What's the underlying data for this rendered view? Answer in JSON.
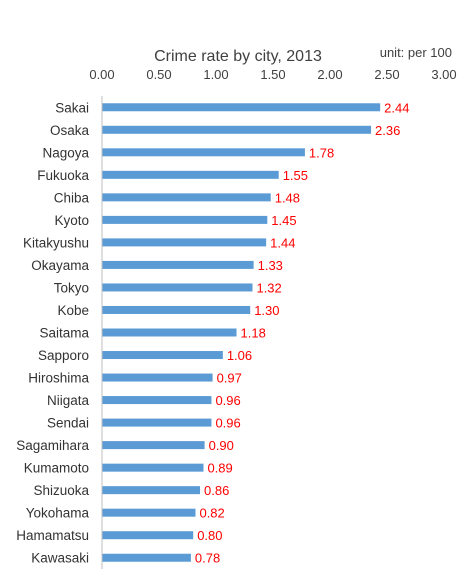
{
  "chart_data": {
    "type": "bar",
    "orientation": "horizontal",
    "title": "Crime rate by city, 2013",
    "unit_note": "unit:  per 100",
    "xlabel": "",
    "ylabel": "",
    "xlim": [
      0,
      3
    ],
    "x_ticks": [
      "0.00",
      "0.50",
      "1.00",
      "1.50",
      "2.00",
      "2.50",
      "3.00"
    ],
    "x_axis_position": "top",
    "grid": false,
    "legend": "none",
    "bar_color": "#5b9bd5",
    "label_color": "#ff0000",
    "categories": [
      "Sakai",
      "Osaka",
      "Nagoya",
      "Fukuoka",
      "Chiba",
      "Kyoto",
      "Kitakyushu",
      "Okayama",
      "Tokyo",
      "Kobe",
      "Saitama",
      "Sapporo",
      "Hiroshima",
      "Niigata",
      "Sendai",
      "Sagamihara",
      "Kumamoto",
      "Shizuoka",
      "Yokohama",
      "Hamamatsu",
      "Kawasaki"
    ],
    "values": [
      2.44,
      2.36,
      1.78,
      1.55,
      1.48,
      1.45,
      1.44,
      1.33,
      1.32,
      1.3,
      1.18,
      1.06,
      0.97,
      0.96,
      0.96,
      0.9,
      0.89,
      0.86,
      0.82,
      0.8,
      0.78
    ],
    "value_labels": [
      "2.44",
      "2.36",
      "1.78",
      "1.55",
      "1.48",
      "1.45",
      "1.44",
      "1.33",
      "1.32",
      "1.30",
      "1.18",
      "1.06",
      "0.97",
      "0.96",
      "0.96",
      "0.90",
      "0.89",
      "0.86",
      "0.82",
      "0.80",
      "0.78"
    ]
  }
}
